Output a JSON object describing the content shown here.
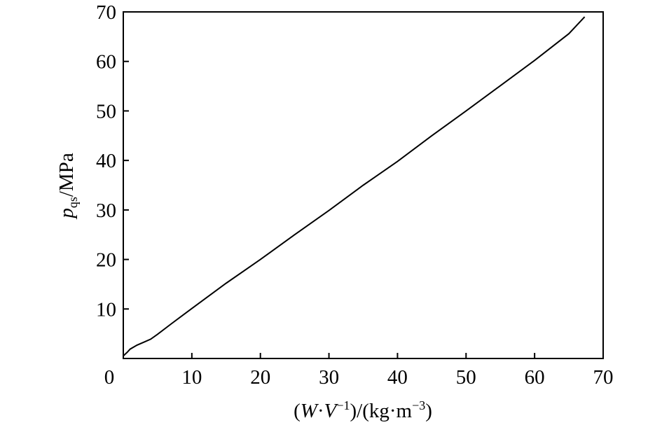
{
  "chart_data": {
    "type": "line",
    "title": "",
    "xlabel": {
      "open": "(",
      "var_w": "W",
      "dot1": "·",
      "var_v": "V",
      "sup_v": "−1",
      "mid": ")/(kg·m",
      "sup_m": "−3",
      "close": ")"
    },
    "ylabel": {
      "var_p": "p",
      "sub_p": "qs",
      "unit": "/MPa"
    },
    "xlim": [
      0,
      70
    ],
    "ylim": [
      0,
      70
    ],
    "x_ticks": [
      0,
      10,
      20,
      30,
      40,
      50,
      60,
      70
    ],
    "x_tick_labels": [
      "0",
      "10",
      "20",
      "30",
      "40",
      "50",
      "60",
      "70"
    ],
    "y_ticks": [
      10,
      20,
      30,
      40,
      50,
      60,
      70
    ],
    "y_tick_labels": [
      "10",
      "20",
      "30",
      "40",
      "50",
      "60",
      "70"
    ],
    "grid": false,
    "series": [
      {
        "x": [
          0.0,
          0.3,
          0.6,
          1.0,
          2.0,
          3.0,
          4.0,
          5.0,
          7.0,
          10.0,
          15.0,
          20.0,
          25.0,
          30.0,
          35.0,
          40.0,
          45.0,
          50.0,
          55.0,
          60.0,
          65.0,
          67.3
        ],
        "y": [
          0.5,
          0.9,
          1.3,
          1.9,
          2.7,
          3.3,
          3.9,
          4.9,
          7.0,
          10.1,
          15.2,
          20.0,
          25.0,
          29.9,
          35.0,
          39.8,
          45.0,
          50.0,
          55.1,
          60.2,
          65.6,
          69.0
        ]
      }
    ]
  }
}
